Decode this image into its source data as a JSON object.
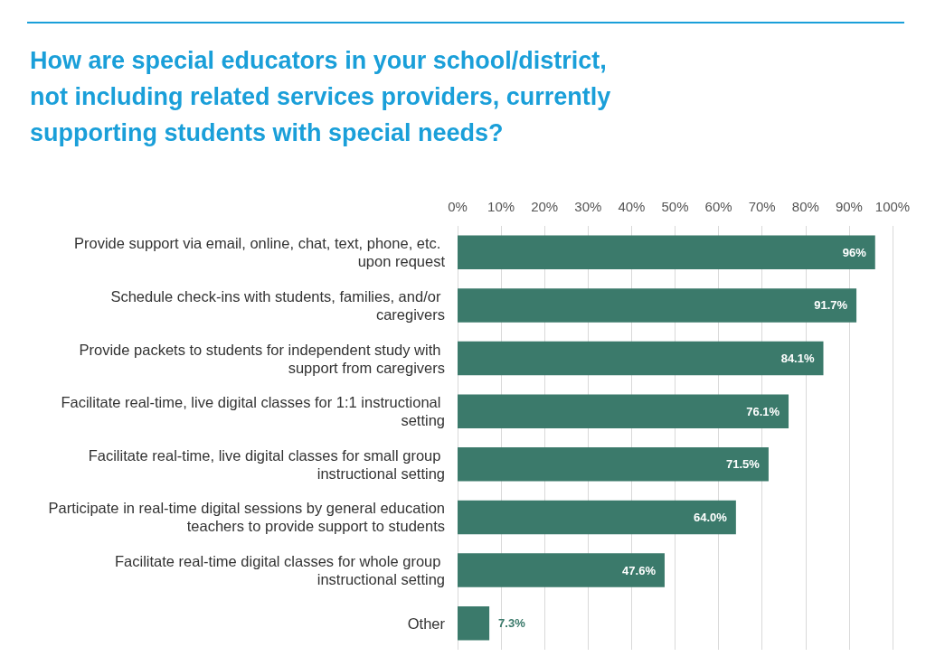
{
  "chart_data": {
    "type": "bar",
    "orientation": "horizontal",
    "title": "How are special educators in your school/district, not including related services providers, currently supporting students with special needs?",
    "categories": [
      "Provide support via email, online, chat, text, phone, etc. upon request",
      "Schedule check-ins with students, families, and/or caregivers",
      "Provide packets to students for independent study with support from caregivers",
      "Facilitate real-time, live digital classes for 1:1 instructional setting",
      "Facilitate real-time, live digital classes for small group instructional setting",
      "Participate in real-time digital sessions by general education teachers to provide support to students",
      "Facilitate real-time digital classes for whole group instructional setting",
      "Other"
    ],
    "values": [
      96,
      91.7,
      84.1,
      76.1,
      71.5,
      64.0,
      47.6,
      7.3
    ],
    "value_labels": [
      "96%",
      "91.7%",
      "84.1%",
      "76.1%",
      "71.5%",
      "64.0%",
      "47.6%",
      "7.3%"
    ],
    "color": "#3b7a6b",
    "xlim": [
      0,
      100
    ],
    "xticks": [
      {
        "value": 0,
        "label": "0%"
      },
      {
        "value": 10,
        "label": "10%"
      },
      {
        "value": 20,
        "label": "20%"
      },
      {
        "value": 30,
        "label": "30%"
      },
      {
        "value": 40,
        "label": "40%"
      },
      {
        "value": 50,
        "label": "50%"
      },
      {
        "value": 60,
        "label": "60%"
      },
      {
        "value": 70,
        "label": "70%"
      },
      {
        "value": 80,
        "label": "80%"
      },
      {
        "value": 90,
        "label": "90%"
      },
      {
        "value": 100,
        "label": "100%"
      }
    ],
    "grid": "x"
  }
}
